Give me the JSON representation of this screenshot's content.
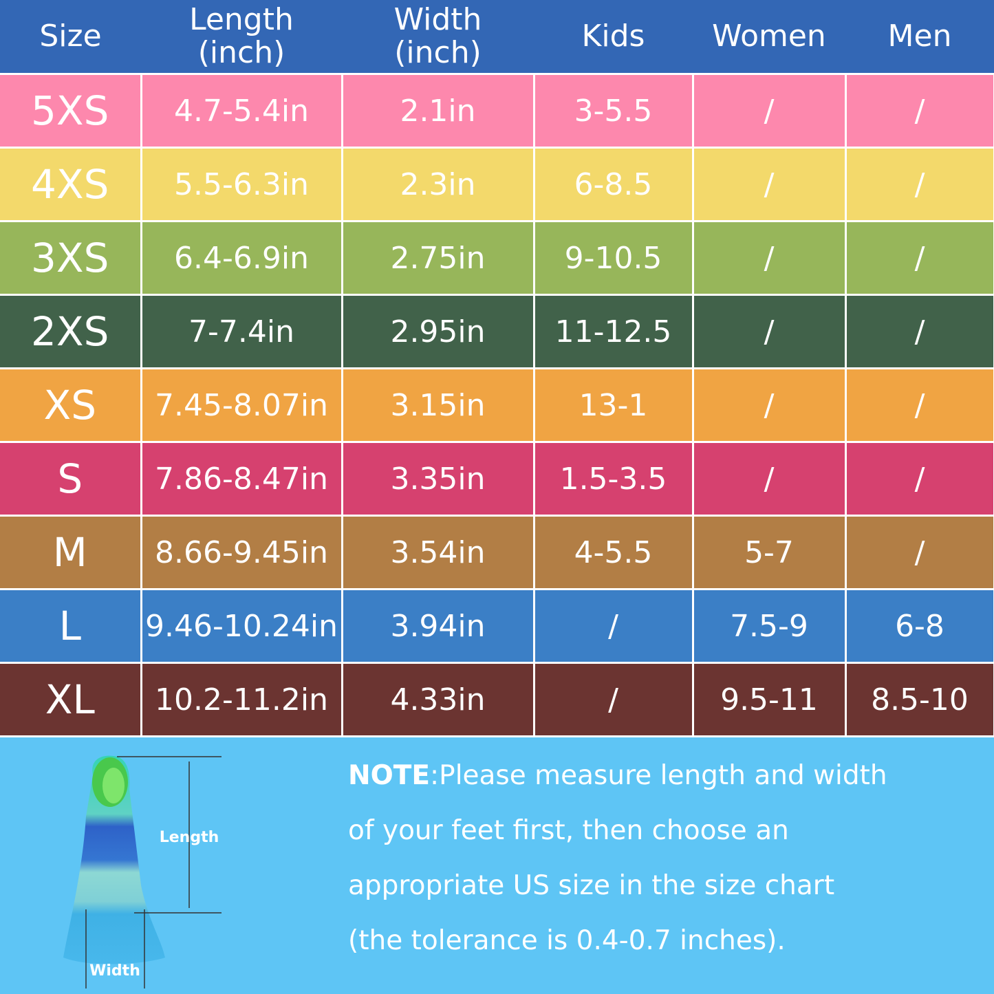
{
  "table": {
    "header": [
      [
        "Size"
      ],
      [
        "Length",
        "(inch)"
      ],
      [
        "Width",
        "(inch)"
      ],
      [
        "Kids"
      ],
      [
        "Women"
      ],
      [
        "Men"
      ]
    ],
    "rows": [
      [
        "5XS",
        "4.7-5.4in",
        "2.1in",
        "3-5.5",
        "/",
        "/"
      ],
      [
        "4XS",
        "5.5-6.3in",
        "2.3in",
        "6-8.5",
        "/",
        "/"
      ],
      [
        "3XS",
        "6.4-6.9in",
        "2.75in",
        "9-10.5",
        "/",
        "/"
      ],
      [
        "2XS",
        "7-7.4in",
        "2.95in",
        "11-12.5",
        "/",
        "/"
      ],
      [
        "XS",
        "7.45-8.07in",
        "3.15in",
        "13-1",
        "/",
        "/"
      ],
      [
        "S",
        "7.86-8.47in",
        "3.35in",
        "1.5-3.5",
        "/",
        "/"
      ],
      [
        "M",
        "8.66-9.45in",
        "3.54in",
        "4-5.5",
        "5-7",
        "/"
      ],
      [
        "L",
        "9.46-10.24in",
        "3.94in",
        "/",
        "7.5-9",
        "6-8"
      ],
      [
        "XL",
        "10.2-11.2in",
        "4.33in",
        "/",
        "9.5-11",
        "8.5-10"
      ]
    ],
    "row_colors": [
      "#fd88ad",
      "#f3d96b",
      "#97b65a",
      "#41624a",
      "#f0a443",
      "#d6416f",
      "#b27e45",
      "#3b7fc6",
      "#6b3431"
    ]
  },
  "figure": {
    "length_label": "Length",
    "width_label": "Width"
  },
  "note": {
    "label": "NOTE",
    "text": ":Please measure length and width of your feet first, then choose an appropriate US size in the size chart (the tolerance is 0.4-0.7 inches)."
  }
}
